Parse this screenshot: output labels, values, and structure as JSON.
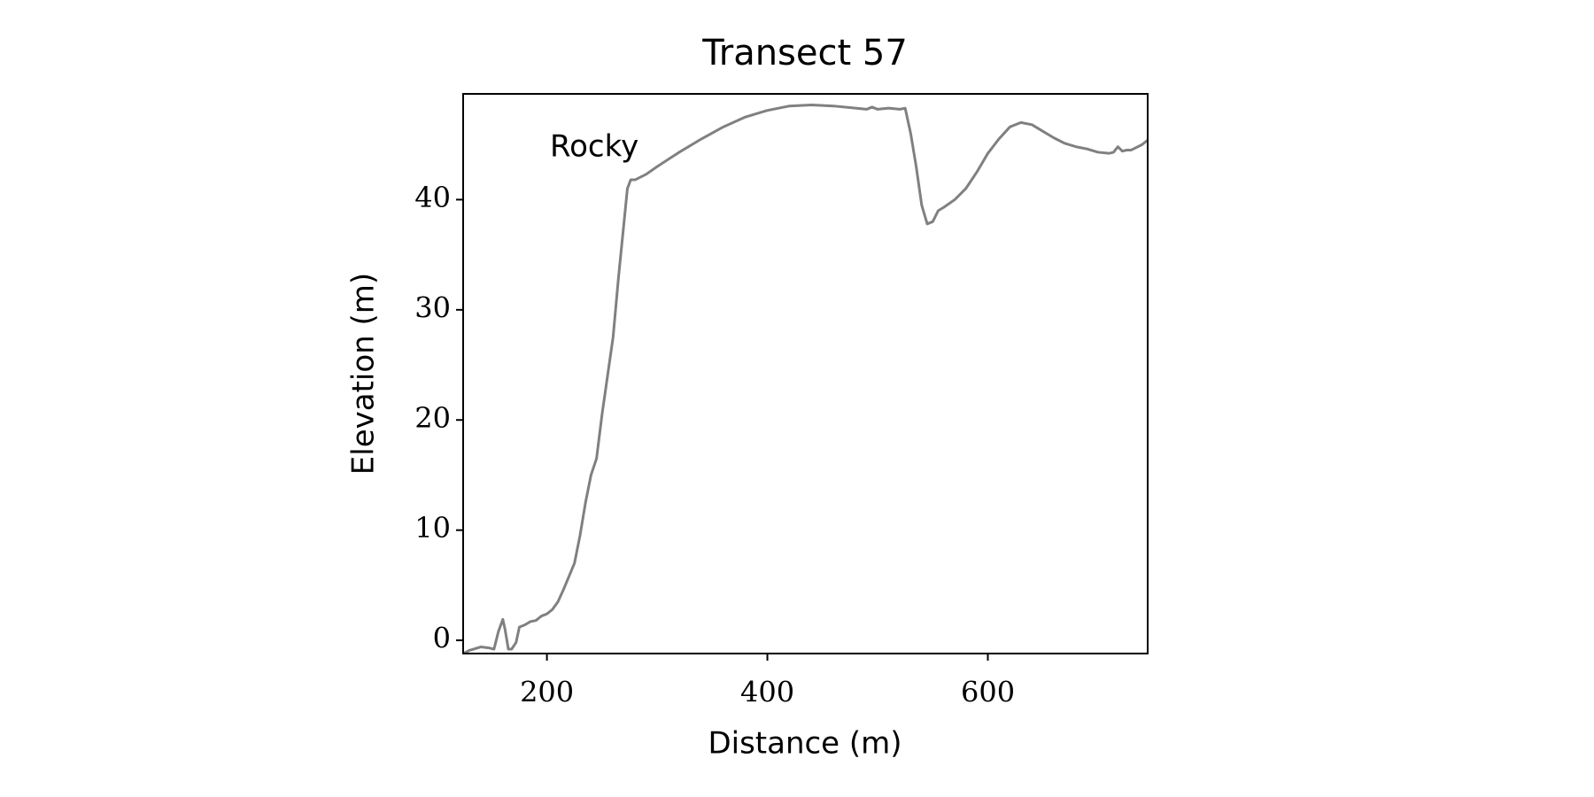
{
  "chart_data": {
    "type": "line",
    "title": "Transect 57",
    "x_label": "Distance (m)",
    "y_label": "Elevation (m)",
    "annotation": "Rocky",
    "x": [
      124,
      130,
      140,
      148,
      152,
      156,
      160,
      162,
      165,
      168,
      172,
      175,
      180,
      185,
      190,
      195,
      200,
      205,
      210,
      215,
      220,
      225,
      230,
      235,
      240,
      245,
      250,
      255,
      260,
      265,
      270,
      273,
      276,
      280,
      290,
      300,
      320,
      340,
      360,
      380,
      400,
      420,
      440,
      460,
      480,
      490,
      495,
      500,
      510,
      520,
      525,
      530,
      535,
      540,
      545,
      550,
      555,
      560,
      570,
      580,
      590,
      600,
      610,
      620,
      630,
      640,
      650,
      660,
      670,
      680,
      690,
      700,
      710,
      714,
      718,
      722,
      726,
      730,
      740,
      745
    ],
    "series": [
      {
        "color": "#808080",
        "values": [
          -1.2,
          -0.9,
          -0.6,
          -0.7,
          -0.8,
          0.8,
          1.9,
          1.0,
          -0.8,
          -0.8,
          -0.2,
          1.2,
          1.4,
          1.7,
          1.8,
          2.2,
          2.4,
          2.8,
          3.5,
          4.6,
          5.8,
          7.0,
          9.5,
          12.5,
          15,
          16.5,
          20.5,
          24,
          27.5,
          33,
          38,
          41,
          41.8,
          41.8,
          42.3,
          43,
          44.3,
          45.5,
          46.6,
          47.5,
          48.1,
          48.5,
          48.6,
          48.5,
          48.3,
          48.2,
          48.4,
          48.2,
          48.3,
          48.2,
          48.3,
          46,
          43,
          39.5,
          37.8,
          38,
          39,
          39.3,
          40,
          41,
          42.5,
          44.2,
          45.5,
          46.6,
          47,
          46.8,
          46.2,
          45.6,
          45.1,
          44.8,
          44.6,
          44.3,
          44.2,
          44.3,
          44.8,
          44.4,
          44.5,
          44.5,
          45,
          45.4
        ]
      }
    ],
    "xlim": [
      124,
      745
    ],
    "ylim": [
      -1.2,
      49.6
    ],
    "xticks": [
      200,
      400,
      600
    ],
    "yticks": [
      0,
      10,
      20,
      30,
      40
    ],
    "grid": false
  }
}
